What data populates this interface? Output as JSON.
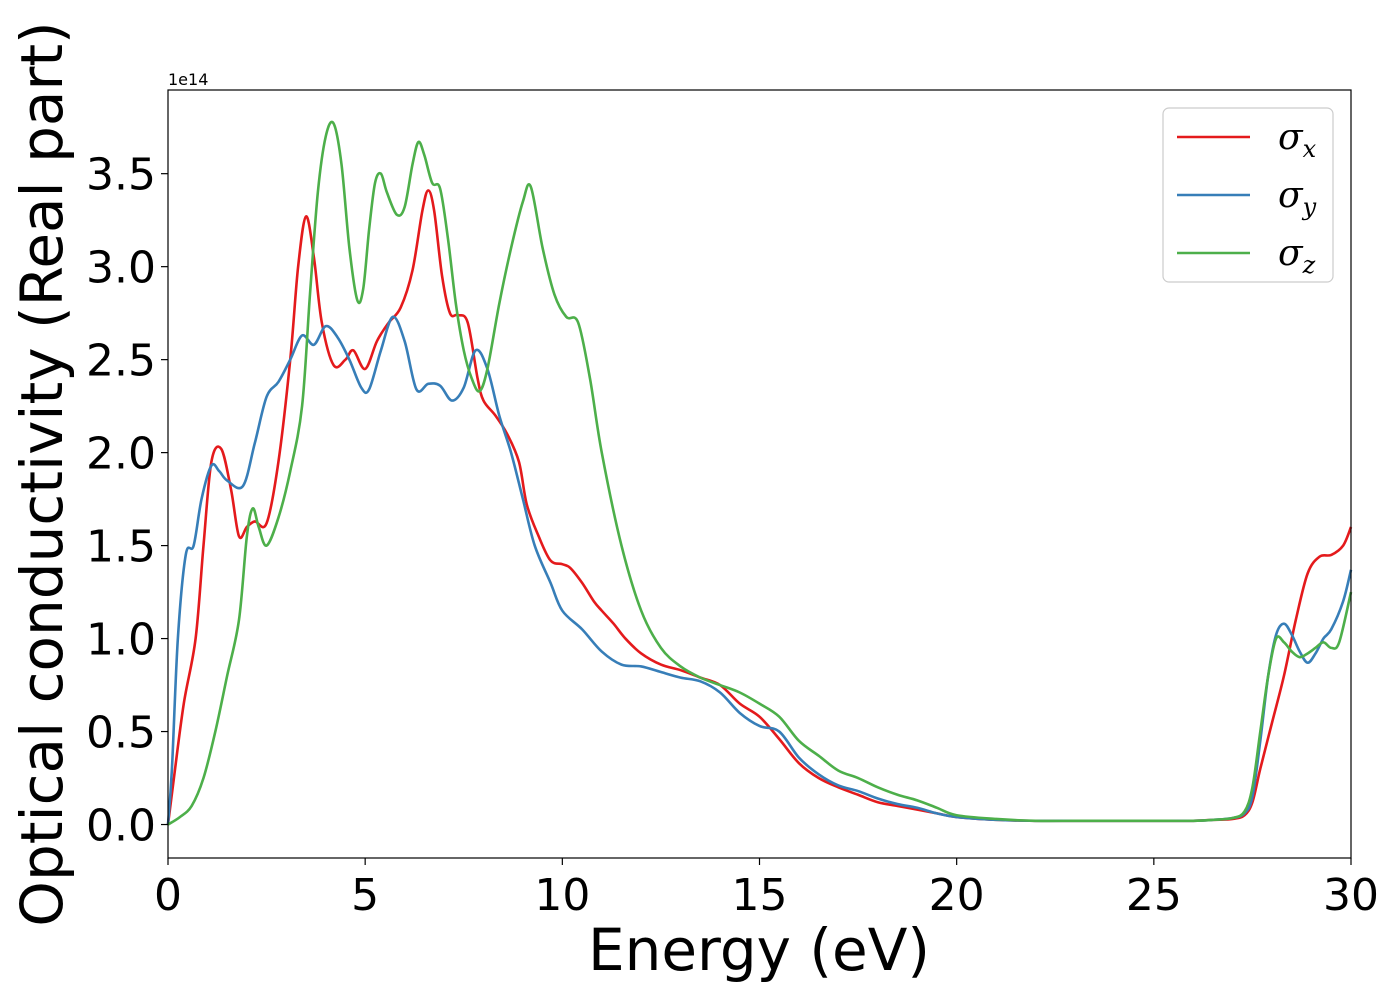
{
  "chart_data": {
    "type": "line",
    "title": "",
    "xlabel": "Energy (eV)",
    "ylabel": "Optical conductivity (Real part)",
    "y_offset_text": "1e14",
    "y_scale": 100000000000000.0,
    "xlim": [
      0,
      30
    ],
    "ylim": [
      -0.18,
      3.95
    ],
    "xticks": [
      0,
      5,
      10,
      15,
      20,
      25,
      30
    ],
    "xtick_labels": [
      "0",
      "5",
      "10",
      "15",
      "20",
      "25",
      "30"
    ],
    "yticks": [
      0.0,
      0.5,
      1.0,
      1.5,
      2.0,
      2.5,
      3.0,
      3.5
    ],
    "ytick_labels": [
      "0.0",
      "0.5",
      "1.0",
      "1.5",
      "2.0",
      "2.5",
      "3.0",
      "3.5"
    ],
    "grid": false,
    "legend_position": "top-right",
    "series": [
      {
        "name": "σx",
        "symbol": "σ",
        "subscript": "x",
        "color": "#e41a1c",
        "x": [
          0,
          0.15,
          0.4,
          0.7,
          0.9,
          1.1,
          1.35,
          1.6,
          1.8,
          2.0,
          2.2,
          2.5,
          2.8,
          3.1,
          3.3,
          3.5,
          3.7,
          3.9,
          4.2,
          4.5,
          4.7,
          5.0,
          5.3,
          5.6,
          5.9,
          6.2,
          6.45,
          6.6,
          6.75,
          6.95,
          7.15,
          7.35,
          7.6,
          7.85,
          8.0,
          8.3,
          8.6,
          8.9,
          9.1,
          9.4,
          9.7,
          10.0,
          10.2,
          10.5,
          10.8,
          11.0,
          11.3,
          11.6,
          12.0,
          12.5,
          13.0,
          13.5,
          14.0,
          14.5,
          15.0,
          15.5,
          16.0,
          16.5,
          17.0,
          17.5,
          18.0,
          18.5,
          19.0,
          19.5,
          20.0,
          21.0,
          22.0,
          23.0,
          24.0,
          25.0,
          26.0,
          26.5,
          27.0,
          27.3,
          27.5,
          27.7,
          28.0,
          28.3,
          28.6,
          28.9,
          29.2,
          29.5,
          29.8,
          30.0
        ],
        "values": [
          0.0,
          0.25,
          0.65,
          1.0,
          1.5,
          1.95,
          2.02,
          1.8,
          1.55,
          1.6,
          1.63,
          1.62,
          1.95,
          2.5,
          3.0,
          3.27,
          3.05,
          2.7,
          2.47,
          2.5,
          2.55,
          2.45,
          2.6,
          2.7,
          2.78,
          2.98,
          3.3,
          3.41,
          3.3,
          2.95,
          2.75,
          2.74,
          2.7,
          2.4,
          2.28,
          2.2,
          2.1,
          1.95,
          1.72,
          1.55,
          1.42,
          1.4,
          1.38,
          1.3,
          1.2,
          1.15,
          1.08,
          1.0,
          0.92,
          0.86,
          0.83,
          0.79,
          0.75,
          0.65,
          0.58,
          0.46,
          0.33,
          0.25,
          0.2,
          0.16,
          0.12,
          0.1,
          0.08,
          0.06,
          0.04,
          0.025,
          0.02,
          0.02,
          0.02,
          0.02,
          0.02,
          0.025,
          0.03,
          0.05,
          0.12,
          0.3,
          0.55,
          0.8,
          1.1,
          1.35,
          1.44,
          1.45,
          1.5,
          1.6
        ]
      },
      {
        "name": "σy",
        "symbol": "σ",
        "subscript": "y",
        "color": "#377eb8",
        "x": [
          0,
          0.1,
          0.25,
          0.45,
          0.65,
          0.85,
          1.1,
          1.3,
          1.5,
          1.9,
          2.2,
          2.5,
          2.8,
          3.1,
          3.4,
          3.7,
          4.0,
          4.3,
          4.6,
          4.9,
          5.1,
          5.4,
          5.7,
          6.0,
          6.3,
          6.6,
          6.9,
          7.2,
          7.5,
          7.8,
          8.1,
          8.4,
          8.7,
          9.0,
          9.3,
          9.7,
          10.0,
          10.5,
          11.0,
          11.5,
          12.0,
          12.5,
          13.0,
          13.5,
          14.0,
          14.5,
          15.0,
          15.5,
          16.0,
          16.5,
          17.0,
          17.5,
          18.0,
          18.5,
          19.0,
          19.5,
          20.0,
          21.0,
          22.0,
          23.0,
          24.0,
          25.0,
          26.0,
          26.5,
          27.0,
          27.3,
          27.5,
          27.7,
          27.9,
          28.1,
          28.3,
          28.5,
          28.7,
          28.9,
          29.1,
          29.3,
          29.5,
          29.8,
          30.0
        ],
        "values": [
          0.0,
          0.3,
          1.0,
          1.45,
          1.5,
          1.75,
          1.93,
          1.9,
          1.85,
          1.82,
          2.05,
          2.3,
          2.38,
          2.5,
          2.63,
          2.58,
          2.68,
          2.62,
          2.5,
          2.35,
          2.34,
          2.55,
          2.73,
          2.6,
          2.34,
          2.37,
          2.36,
          2.28,
          2.35,
          2.55,
          2.45,
          2.2,
          2.0,
          1.75,
          1.5,
          1.3,
          1.15,
          1.05,
          0.93,
          0.86,
          0.85,
          0.82,
          0.79,
          0.77,
          0.71,
          0.6,
          0.53,
          0.5,
          0.36,
          0.27,
          0.21,
          0.18,
          0.14,
          0.11,
          0.09,
          0.06,
          0.04,
          0.025,
          0.02,
          0.02,
          0.02,
          0.02,
          0.02,
          0.025,
          0.035,
          0.06,
          0.15,
          0.45,
          0.8,
          1.02,
          1.08,
          1.02,
          0.93,
          0.87,
          0.92,
          1.0,
          1.05,
          1.2,
          1.37
        ]
      },
      {
        "name": "σz",
        "symbol": "σ",
        "subscript": "z",
        "color": "#4daf4a",
        "x": [
          0,
          0.3,
          0.6,
          0.9,
          1.2,
          1.5,
          1.8,
          2.0,
          2.15,
          2.3,
          2.5,
          2.8,
          3.1,
          3.4,
          3.6,
          3.8,
          4.0,
          4.2,
          4.4,
          4.6,
          4.8,
          4.95,
          5.1,
          5.25,
          5.4,
          5.55,
          5.8,
          6.0,
          6.2,
          6.35,
          6.5,
          6.7,
          6.9,
          7.1,
          7.3,
          7.5,
          7.7,
          7.9,
          8.1,
          8.4,
          8.7,
          9.0,
          9.2,
          9.5,
          9.8,
          10.1,
          10.4,
          10.7,
          11.0,
          11.5,
          12.0,
          12.5,
          13.0,
          13.5,
          14.0,
          14.5,
          15.0,
          15.5,
          16.0,
          16.5,
          17.0,
          17.5,
          18.0,
          18.5,
          19.0,
          19.5,
          20.0,
          21.0,
          22.0,
          23.0,
          24.0,
          25.0,
          26.0,
          26.5,
          27.0,
          27.3,
          27.5,
          27.7,
          27.9,
          28.1,
          28.3,
          28.5,
          28.7,
          28.9,
          29.1,
          29.3,
          29.5,
          29.7,
          30.0
        ],
        "values": [
          0.0,
          0.04,
          0.1,
          0.25,
          0.5,
          0.8,
          1.1,
          1.55,
          1.7,
          1.6,
          1.5,
          1.65,
          1.9,
          2.25,
          2.85,
          3.4,
          3.7,
          3.77,
          3.55,
          3.1,
          2.82,
          2.88,
          3.2,
          3.45,
          3.5,
          3.4,
          3.28,
          3.32,
          3.55,
          3.67,
          3.6,
          3.45,
          3.42,
          3.15,
          2.8,
          2.55,
          2.4,
          2.33,
          2.45,
          2.8,
          3.1,
          3.35,
          3.43,
          3.1,
          2.85,
          2.73,
          2.7,
          2.4,
          2.0,
          1.5,
          1.15,
          0.95,
          0.85,
          0.79,
          0.75,
          0.71,
          0.65,
          0.58,
          0.45,
          0.37,
          0.29,
          0.25,
          0.2,
          0.16,
          0.13,
          0.09,
          0.05,
          0.03,
          0.02,
          0.02,
          0.02,
          0.02,
          0.02,
          0.025,
          0.035,
          0.07,
          0.2,
          0.5,
          0.8,
          1.0,
          0.98,
          0.93,
          0.9,
          0.92,
          0.95,
          0.98,
          0.95,
          0.98,
          1.25
        ]
      }
    ]
  }
}
